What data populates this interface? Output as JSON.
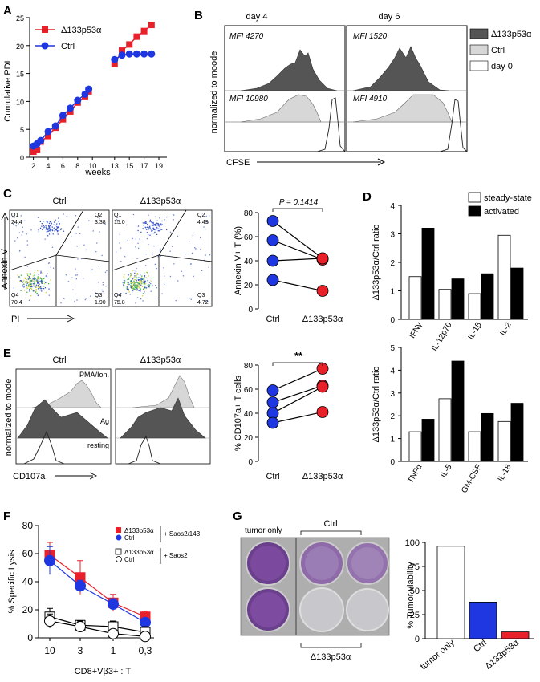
{
  "panel_letters": {
    "A": "A",
    "B": "B",
    "C": "C",
    "D": "D",
    "E": "E",
    "F": "F",
    "G": "G"
  },
  "colors": {
    "red": "#e8202a",
    "blue": "#1f37e0",
    "dark": "#555555",
    "light": "#d7d7d7"
  },
  "panelA": {
    "ylabel": "Cumulative PDL",
    "xlabel": "weeks",
    "legend": [
      "Δ133p53α",
      "Ctrl"
    ],
    "yticks": [
      "0",
      "5",
      "10",
      "15",
      "20",
      "25"
    ],
    "xticks": [
      "2",
      "4",
      "6",
      "8",
      "10",
      "13",
      "15",
      "17",
      "19"
    ]
  },
  "panelB": {
    "days": [
      "day 4",
      "day 6"
    ],
    "ylabel": "normalized to moode",
    "xlabel": "CFSE",
    "mfi": [
      "MFI 4270",
      "MFI 1520",
      "MFI 10980",
      "MFI 4910"
    ],
    "legend": [
      "Δ133p53α",
      "Ctrl",
      "day 0"
    ]
  },
  "panelC": {
    "titles": [
      "Ctrl",
      "Δ133p53α"
    ],
    "ylabel": "Annexin V",
    "xlabel": "PI",
    "quad_ctrl": {
      "q1": "Q1",
      "q1v": "24.4",
      "q2": "Q2",
      "q2v": "3.38",
      "q3": "Q3",
      "q3v": "1.90",
      "q4": "Q4",
      "q4v": "70.4"
    },
    "quad_d": {
      "q1": "Q1",
      "q1v": "15.0",
      "q2": "Q2",
      "q2v": "4.49",
      "q3": "Q3",
      "q3v": "4.72",
      "q4": "Q4",
      "q4v": "75.8"
    },
    "pval": "P = 0.1414",
    "ylabel2": "Annexin V+ T (%)",
    "yticks": [
      "0",
      "20",
      "40",
      "60",
      "80"
    ],
    "xcats": [
      "Ctrl",
      "Δ133p53α"
    ]
  },
  "panelD": {
    "legend": [
      "steady-state",
      "activated"
    ],
    "ylabel": "Δ133p53α/Ctrl ratio",
    "yticks": [
      "0",
      "1",
      "2",
      "3",
      "4"
    ],
    "top_cats": [
      "IFNγ",
      "IL-12p70",
      "IL-1β",
      "IL-2"
    ],
    "bottom_cats": [
      "TNFα",
      "IL-5",
      "GM-CSF",
      "IL-18"
    ]
  },
  "panelE": {
    "titles": [
      "Ctrl",
      "Δ133p53α"
    ],
    "labels": [
      "PMA/Ion.",
      "Ag",
      "resting"
    ],
    "ylabel": "normalized to mode",
    "xlabel": "CD107a",
    "sig": "**",
    "ylabel2": "% CD107a+ T cells",
    "yticks": [
      "0",
      "20",
      "40",
      "60",
      "80"
    ],
    "xcats": [
      "Ctrl",
      "Δ133p53α"
    ]
  },
  "panelF": {
    "ylabel": "% Specific Lysis",
    "xlabel": "CD8+Vβ3+ : T",
    "yticks": [
      "0",
      "20",
      "40",
      "60",
      "80"
    ],
    "xticks": [
      "10",
      "3",
      "1",
      "0,3"
    ],
    "legend": [
      "Δ133p53α",
      "Ctrl",
      "Δ133p53α",
      "Ctrl"
    ],
    "targets": [
      "+ Saos2/143",
      "+ Saos2"
    ]
  },
  "panelG": {
    "labels": [
      "tumor only",
      "Ctrl",
      "Δ133p53α"
    ],
    "ylabel": "% Tumor viability",
    "yticks": [
      "0",
      "25",
      "50",
      "75",
      "100"
    ],
    "xcats": [
      "tumor only",
      "Ctrl",
      "Δ133p53α"
    ]
  },
  "chart_data": [
    {
      "type": "line",
      "panel": "A",
      "xlabel": "weeks",
      "ylabel": "Cumulative PDL",
      "ylim": [
        0,
        25
      ],
      "series": [
        {
          "name": "Δ133p53α",
          "x": [
            2,
            2.5,
            3,
            4,
            5,
            6,
            7,
            8,
            9,
            9.5,
            13,
            14,
            15,
            16,
            17,
            18
          ],
          "values": [
            1,
            1.3,
            2.8,
            3.8,
            5.3,
            6.8,
            8.2,
            9.8,
            10.8,
            11.8,
            16.7,
            19.1,
            20.2,
            21.6,
            22.6,
            23.7
          ]
        },
        {
          "name": "Ctrl",
          "x": [
            2,
            2.5,
            3,
            4,
            5,
            6,
            7,
            8,
            9,
            9.5,
            13,
            14,
            15,
            16,
            17,
            18
          ],
          "values": [
            2,
            2.4,
            3,
            4.6,
            5.6,
            7.5,
            8.8,
            10.2,
            11.3,
            12.2,
            17.5,
            18.3,
            18.5,
            18.5,
            18.5,
            18.5
          ]
        }
      ]
    },
    {
      "type": "scatter",
      "panel": "C",
      "ylabel": "Annexin V+ T (%)",
      "ylim": [
        0,
        80
      ],
      "categories": [
        "Ctrl",
        "Δ133p53α"
      ],
      "pairs": [
        [
          73,
          42
        ],
        [
          57,
          41
        ],
        [
          40,
          42
        ],
        [
          24,
          15
        ]
      ]
    },
    {
      "type": "bar",
      "panel": "D-top",
      "categories": [
        "IFNγ",
        "IL-12p70",
        "IL-1β",
        "IL-2"
      ],
      "ylim": [
        0,
        4
      ],
      "series": [
        {
          "name": "steady-state",
          "values": [
            1.5,
            1.05,
            0.9,
            2.95
          ]
        },
        {
          "name": "activated",
          "values": [
            3.2,
            1.42,
            1.6,
            1.8
          ]
        }
      ]
    },
    {
      "type": "bar",
      "panel": "D-bottom",
      "categories": [
        "TNFα",
        "IL-5",
        "GM-CSF",
        "IL-18"
      ],
      "ylim": [
        0,
        5
      ],
      "series": [
        {
          "name": "steady-state",
          "values": [
            1.3,
            2.75,
            1.3,
            1.75
          ]
        },
        {
          "name": "activated",
          "values": [
            1.85,
            4.4,
            2.1,
            2.55
          ]
        }
      ]
    },
    {
      "type": "scatter",
      "panel": "E",
      "ylabel": "% CD107a+ T cells",
      "ylim": [
        0,
        80
      ],
      "categories": [
        "Ctrl",
        "Δ133p53α"
      ],
      "pairs": [
        [
          59,
          77
        ],
        [
          49,
          63
        ],
        [
          40,
          62
        ],
        [
          32,
          41
        ]
      ]
    },
    {
      "type": "line",
      "panel": "F",
      "ylabel": "% Specific Lysis",
      "categories": [
        "10",
        "3",
        "1",
        "0,3"
      ],
      "ylim": [
        0,
        80
      ],
      "series": [
        {
          "name": "Δ133p53α",
          "values": [
            59,
            43,
            25,
            15
          ],
          "err": [
            9,
            12,
            6,
            4
          ]
        },
        {
          "name": "Ctrl",
          "values": [
            55,
            37,
            24,
            11
          ],
          "err": [
            10,
            4,
            4,
            3
          ]
        },
        {
          "name": "Δ133p53α",
          "values": [
            15,
            9,
            8,
            4
          ],
          "err": [
            6,
            3,
            4,
            4
          ]
        },
        {
          "name": "Ctrl",
          "values": [
            12,
            8,
            3,
            1
          ],
          "err": [
            5,
            4,
            2,
            2
          ]
        }
      ]
    },
    {
      "type": "bar",
      "panel": "G",
      "ylabel": "% Tumor viability",
      "ylim": [
        0,
        100
      ],
      "categories": [
        "tumor only",
        "Ctrl",
        "Δ133p53α"
      ],
      "values": [
        96,
        38,
        7
      ]
    }
  ]
}
